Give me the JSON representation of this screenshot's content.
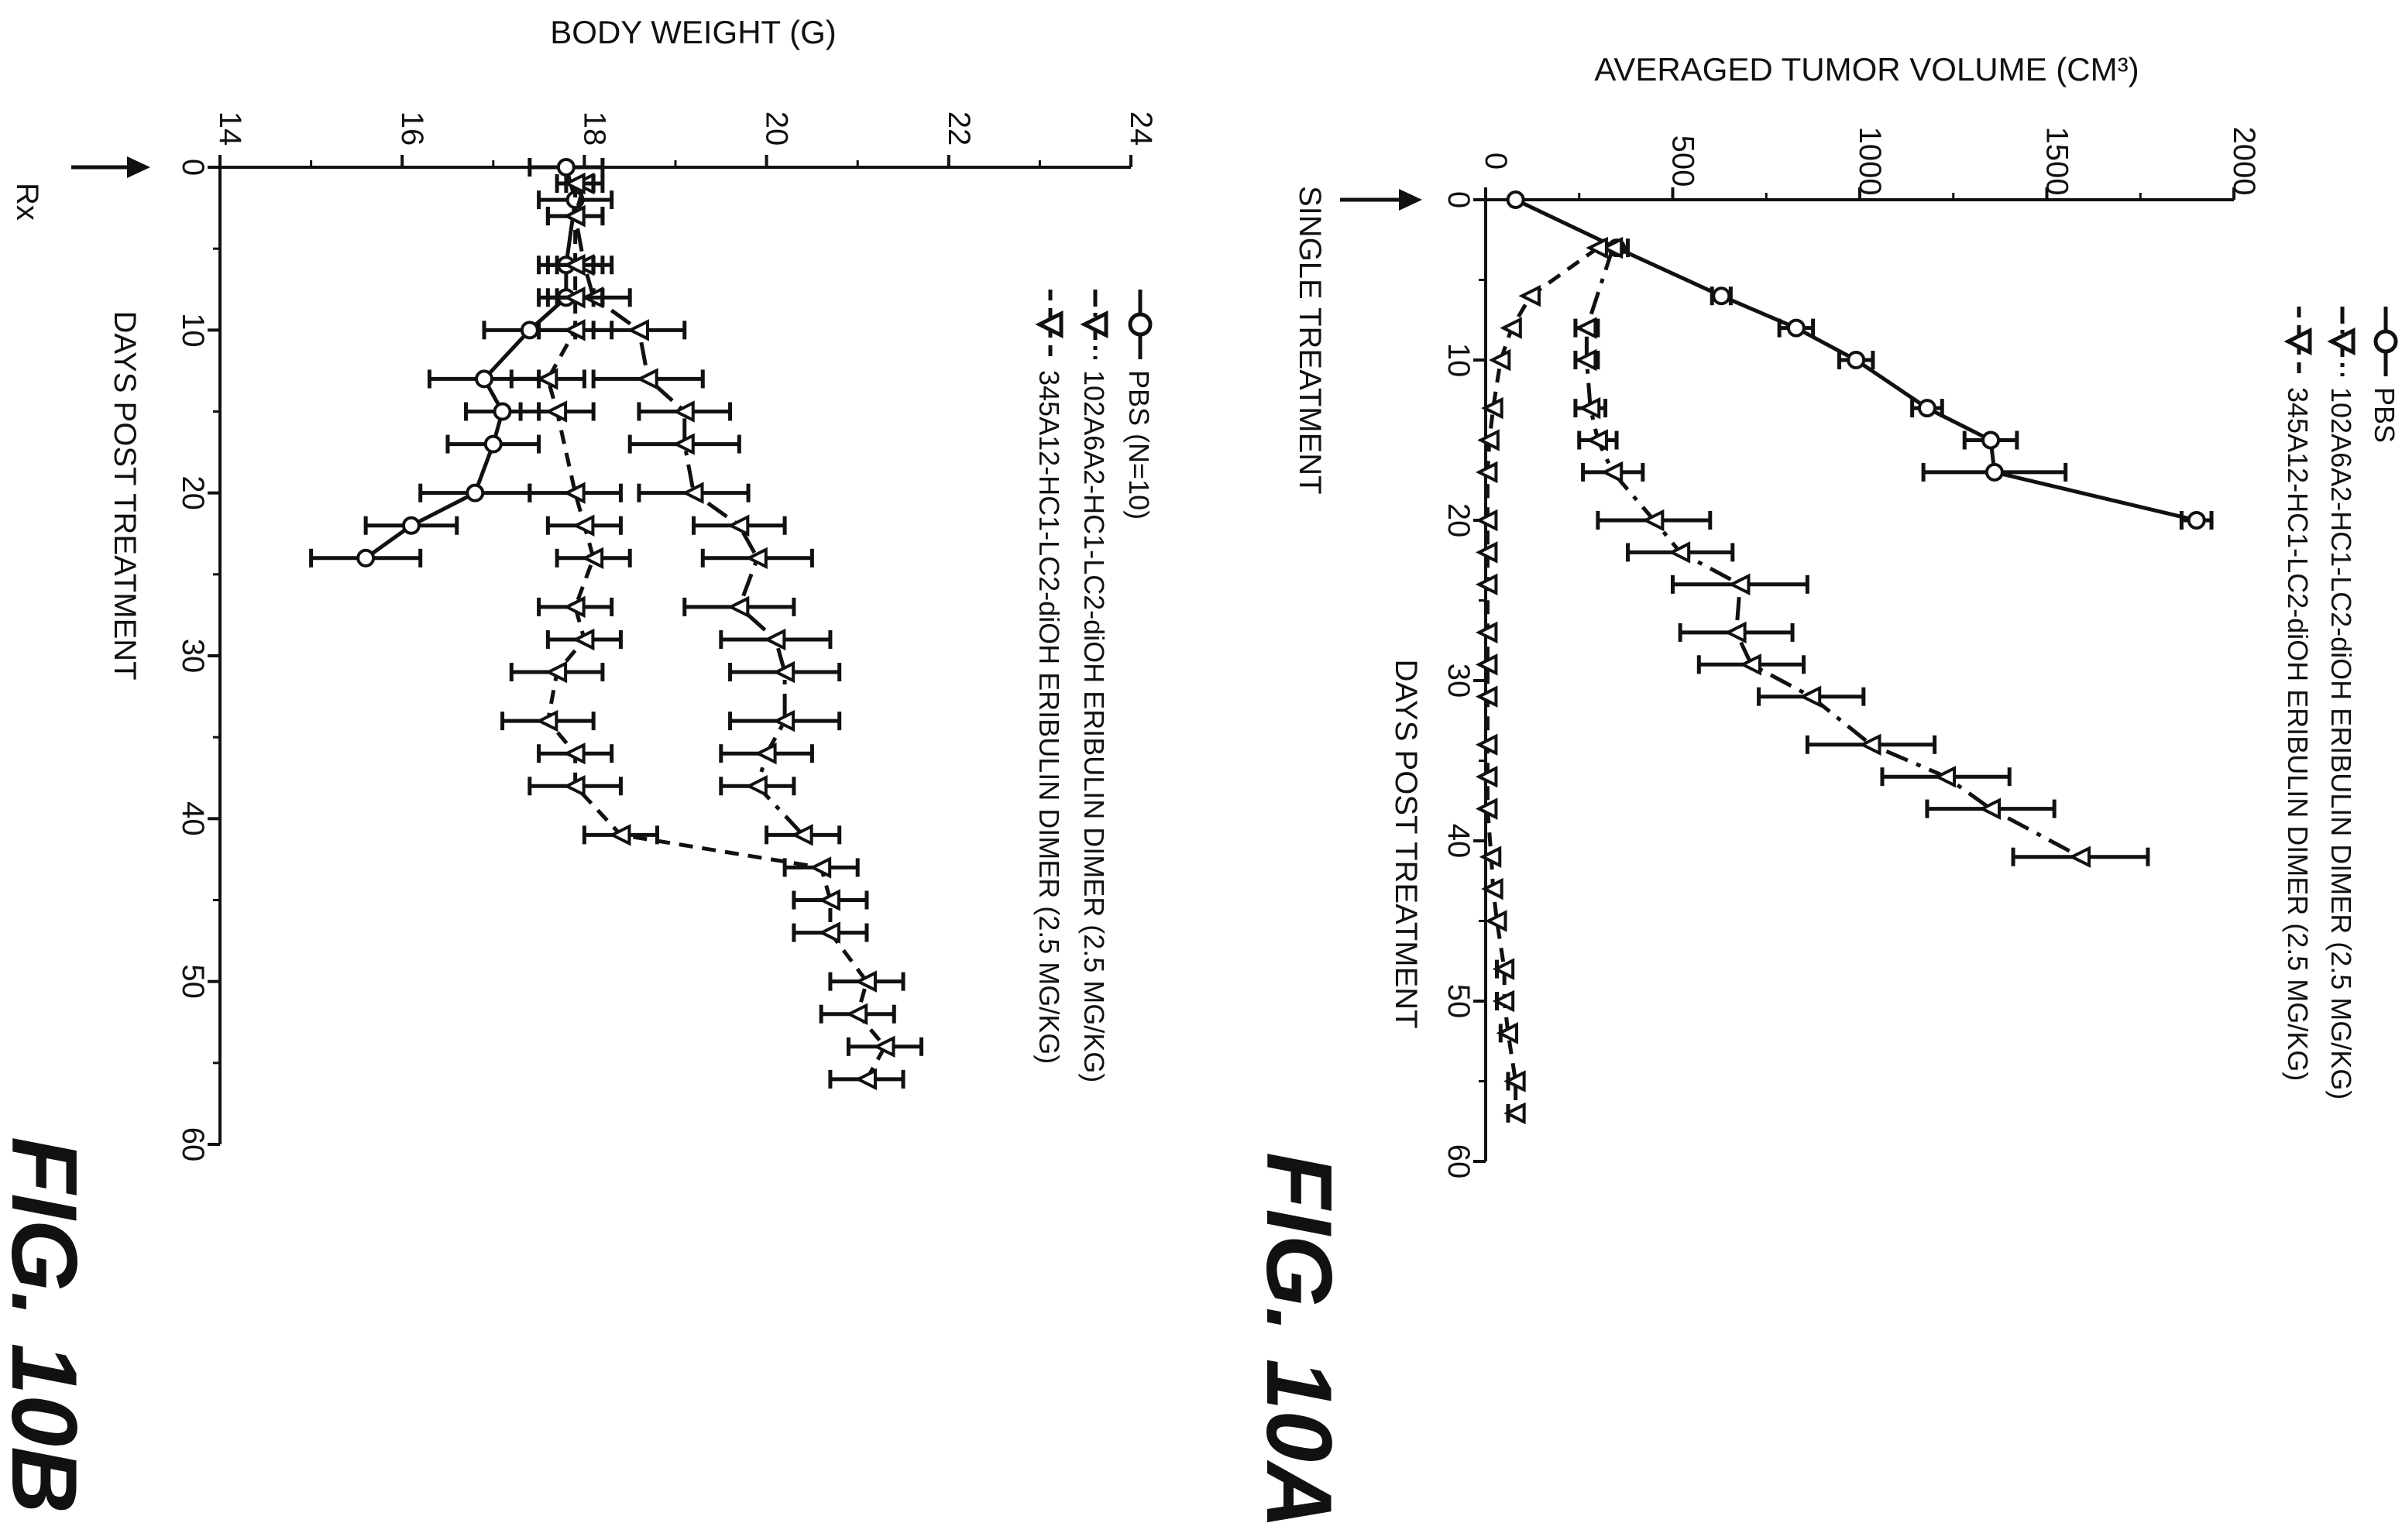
{
  "figures": [
    {
      "figure_label": "FIG. 10A",
      "rx_label": "SINGLE TREATMENT",
      "legend": [
        {
          "name": "PBS",
          "symbol": "circle",
          "dash": "solid"
        },
        {
          "name": "102A6A2-HC1-LC2-diOH ERIBULIN DIMER (2.5 MG/KG)",
          "symbol": "triangle",
          "dash": "dashdot"
        },
        {
          "name": "345A12-HC1-LC2-diOH ERIBULIN DIMER (2.5 MG/KG)",
          "symbol": "triangle",
          "dash": "dash"
        }
      ]
    },
    {
      "figure_label": "FIG. 10B",
      "rx_label": "Rx",
      "legend": [
        {
          "name": "PBS (N=10)",
          "symbol": "circle",
          "dash": "solid"
        },
        {
          "name": "102A6A2-HC1-LC2-diOH ERIBULIN DIMER (2.5 MG/KG)",
          "symbol": "triangle",
          "dash": "dashdot"
        },
        {
          "name": "345A12-HC1-LC2-diOH ERIBULIN DIMER (2.5 MG/KG)",
          "symbol": "triangle",
          "dash": "dash"
        }
      ]
    }
  ],
  "chart_data": [
    {
      "type": "line",
      "xlabel": "DAYS POST TREATMENT",
      "ylabel": "AVERAGED TUMOR VOLUME (CM³)",
      "xlim": [
        0,
        60
      ],
      "ylim": [
        0,
        2000
      ],
      "xticks": [
        0,
        10,
        20,
        30,
        40,
        50,
        60
      ],
      "yticks": [
        0,
        500,
        1000,
        1500,
        2000
      ],
      "grid": false,
      "legend_position": "top-left",
      "error_bars": true,
      "orientation": "rotated 90 degrees clockwise",
      "series": [
        {
          "name": "PBS",
          "x": [
            0,
            3,
            6,
            8,
            10,
            13,
            15,
            17,
            20
          ],
          "y": [
            80,
            350,
            630,
            830,
            990,
            1180,
            1350,
            1360,
            1900
          ],
          "err": [
            0,
            30,
            25,
            45,
            45,
            40,
            70,
            190,
            40
          ]
        },
        {
          "name": "102A6A2-HC1-LC2-diOH ERIBULIN DIMER (2.5 MG/KG)",
          "x": [
            3,
            8,
            10,
            13,
            15,
            17,
            20,
            22,
            24,
            27,
            29,
            31,
            34,
            36,
            38,
            41
          ],
          "y": [
            340,
            270,
            270,
            280,
            300,
            340,
            450,
            520,
            680,
            670,
            710,
            870,
            1030,
            1230,
            1350,
            1590
          ],
          "err": [
            20,
            30,
            30,
            40,
            50,
            80,
            150,
            140,
            180,
            150,
            140,
            140,
            170,
            170,
            170,
            180
          ]
        },
        {
          "name": "345A12-HC1-LC2-diOH ERIBULIN DIMER (2.5 MG/KG)",
          "x": [
            3,
            6,
            8,
            10,
            13,
            15,
            17,
            20,
            22,
            24,
            27,
            29,
            31,
            34,
            36,
            38,
            41,
            43,
            45,
            48,
            50,
            52,
            55,
            57
          ],
          "y": [
            300,
            120,
            70,
            40,
            20,
            10,
            5,
            5,
            5,
            5,
            5,
            5,
            5,
            5,
            5,
            5,
            15,
            20,
            30,
            50,
            50,
            60,
            80,
            80
          ],
          "err": [
            0,
            0,
            0,
            0,
            0,
            0,
            0,
            0,
            0,
            0,
            0,
            0,
            0,
            0,
            0,
            0,
            0,
            0,
            0,
            20,
            20,
            20,
            20,
            20
          ]
        }
      ]
    },
    {
      "type": "line",
      "xlabel": "DAYS POST TREATMENT",
      "ylabel": "BODY WEIGHT (G)",
      "xlim": [
        0,
        60
      ],
      "ylim": [
        14,
        24
      ],
      "xticks": [
        0,
        10,
        20,
        30,
        40,
        50,
        60
      ],
      "yticks": [
        14,
        16,
        18,
        20,
        22,
        24
      ],
      "grid": false,
      "legend_position": "top-left",
      "error_bars": true,
      "orientation": "rotated 90 degrees clockwise",
      "series": [
        {
          "name": "PBS (N=10)",
          "x": [
            0,
            2,
            6,
            8,
            10,
            13,
            15,
            17,
            20,
            22,
            24
          ],
          "y": [
            17.8,
            17.9,
            17.8,
            17.8,
            17.4,
            16.9,
            17.1,
            17.0,
            16.8,
            16.1,
            15.6
          ],
          "err": [
            0.4,
            0.4,
            0.3,
            0.3,
            0.5,
            0.6,
            0.4,
            0.5,
            0.6,
            0.5,
            0.6
          ]
        },
        {
          "name": "102A6A2-HC1-LC2-diOH ERIBULIN DIMER (2.5 MG/KG)",
          "x": [
            1,
            3,
            6,
            8,
            10,
            13,
            15,
            17,
            20,
            22,
            24,
            27,
            29,
            31,
            34,
            36,
            38,
            41
          ],
          "y": [
            18.0,
            17.9,
            18.0,
            18.1,
            18.6,
            18.7,
            19.1,
            19.1,
            19.2,
            19.7,
            19.9,
            19.7,
            20.1,
            20.2,
            20.2,
            20.0,
            19.9,
            20.4
          ],
          "err": [
            0.2,
            0.3,
            0.3,
            0.4,
            0.5,
            0.6,
            0.5,
            0.6,
            0.6,
            0.5,
            0.6,
            0.6,
            0.6,
            0.6,
            0.6,
            0.5,
            0.4,
            0.4
          ]
        },
        {
          "name": "345A12-HC1-LC2-diOH ERIBULIN DIMER (2.5 MG/KG)",
          "x": [
            1,
            3,
            6,
            8,
            10,
            13,
            15,
            20,
            22,
            24,
            27,
            29,
            31,
            34,
            36,
            38,
            41,
            43,
            45,
            47,
            50,
            52,
            54,
            56
          ],
          "y": [
            17.9,
            17.9,
            17.9,
            17.9,
            17.9,
            17.6,
            17.7,
            17.9,
            18.0,
            18.1,
            17.9,
            18.0,
            17.7,
            17.6,
            17.9,
            17.9,
            18.4,
            20.6,
            20.7,
            20.7,
            21.1,
            21.0,
            21.3,
            21.1
          ],
          "err": [
            0.2,
            0.3,
            0.3,
            0.3,
            0.4,
            0.4,
            0.4,
            0.5,
            0.4,
            0.4,
            0.4,
            0.4,
            0.5,
            0.5,
            0.4,
            0.5,
            0.4,
            0.4,
            0.4,
            0.4,
            0.4,
            0.4,
            0.4,
            0.4
          ]
        }
      ]
    }
  ]
}
